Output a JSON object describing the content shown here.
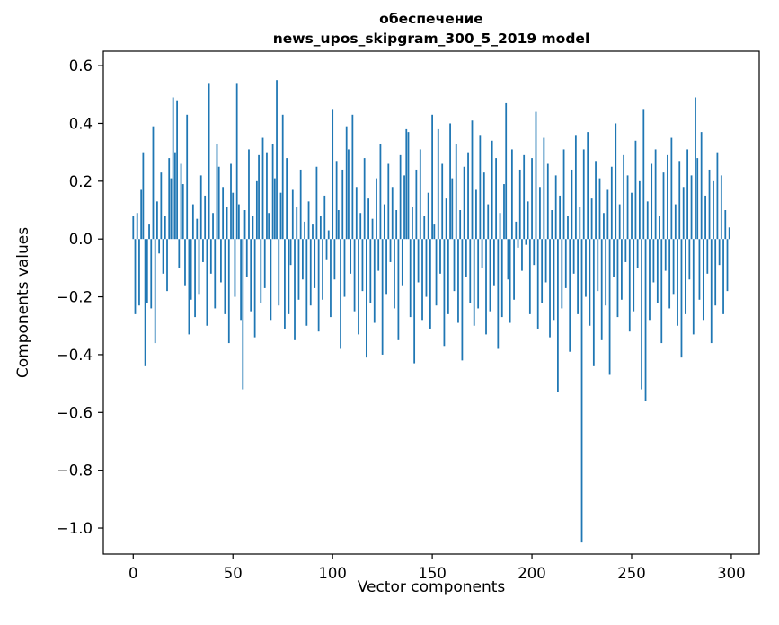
{
  "figure": {
    "title_line1": "обеспечение",
    "title_line2": "news_upos_skipgram_300_5_2019 model",
    "xlabel": "Vector components",
    "ylabel": "Components values"
  },
  "chart_data": {
    "type": "bar",
    "title": "обеспечение — news_upos_skipgram_300_5_2019 model",
    "xlabel": "Vector components",
    "ylabel": "Components values",
    "bar_color": "#1f77b4",
    "grid": false,
    "legend": "none",
    "xlim": [
      -15,
      314
    ],
    "ylim": [
      -1.09,
      0.65
    ],
    "xticks": [
      0,
      50,
      100,
      150,
      200,
      250,
      300
    ],
    "yticks": [
      0.6,
      0.4,
      0.2,
      0.0,
      -0.2,
      -0.4,
      -0.6,
      -0.8,
      -1.0
    ],
    "values": [
      0.08,
      -0.26,
      0.09,
      -0.23,
      0.17,
      0.3,
      -0.44,
      -0.22,
      0.05,
      -0.24,
      0.39,
      -0.36,
      0.13,
      -0.05,
      0.23,
      -0.12,
      0.08,
      -0.18,
      0.28,
      0.21,
      0.49,
      0.3,
      0.48,
      -0.1,
      0.26,
      0.19,
      -0.16,
      0.43,
      -0.33,
      -0.21,
      0.12,
      -0.27,
      0.07,
      -0.19,
      0.22,
      -0.08,
      0.15,
      -0.3,
      0.54,
      -0.12,
      0.09,
      -0.24,
      0.33,
      0.25,
      -0.15,
      0.18,
      -0.26,
      0.11,
      -0.36,
      0.26,
      0.16,
      -0.2,
      0.54,
      0.12,
      -0.28,
      -0.52,
      0.1,
      -0.13,
      0.31,
      -0.25,
      0.08,
      -0.34,
      0.2,
      0.29,
      -0.22,
      0.35,
      -0.17,
      0.3,
      0.09,
      -0.28,
      0.33,
      0.21,
      0.55,
      -0.23,
      0.16,
      0.43,
      -0.31,
      0.28,
      -0.26,
      -0.09,
      0.17,
      -0.35,
      0.11,
      -0.21,
      0.24,
      -0.14,
      0.06,
      -0.3,
      0.13,
      -0.23,
      0.05,
      -0.17,
      0.25,
      -0.32,
      0.08,
      -0.21,
      0.15,
      -0.07,
      0.03,
      -0.27,
      0.45,
      -0.14,
      0.27,
      0.1,
      -0.38,
      0.24,
      -0.2,
      0.39,
      0.31,
      -0.12,
      0.43,
      -0.25,
      0.18,
      -0.33,
      0.09,
      -0.18,
      0.28,
      -0.41,
      0.14,
      -0.22,
      0.07,
      -0.29,
      0.21,
      -0.11,
      0.33,
      -0.4,
      0.12,
      -0.19,
      0.26,
      -0.08,
      0.18,
      -0.24,
      0.1,
      -0.35,
      0.29,
      -0.16,
      0.22,
      0.38,
      0.37,
      -0.27,
      0.11,
      -0.43,
      0.24,
      -0.15,
      0.31,
      -0.28,
      0.08,
      -0.2,
      0.16,
      -0.31,
      0.43,
      0.05,
      -0.23,
      0.38,
      -0.12,
      0.26,
      -0.37,
      0.14,
      -0.26,
      0.4,
      0.21,
      -0.18,
      0.33,
      -0.29,
      0.1,
      -0.42,
      0.25,
      -0.13,
      0.3,
      -0.22,
      0.41,
      -0.3,
      0.17,
      -0.24,
      0.36,
      -0.1,
      0.23,
      -0.33,
      0.12,
      -0.25,
      0.34,
      -0.16,
      0.28,
      -0.38,
      0.09,
      -0.27,
      0.19,
      0.47,
      -0.14,
      -0.29,
      0.31,
      -0.21,
      0.06,
      -0.03,
      0.24,
      -0.11,
      0.29,
      -0.02,
      0.13,
      -0.26,
      0.28,
      -0.09,
      0.44,
      -0.31,
      0.18,
      -0.22,
      0.35,
      -0.15,
      0.26,
      -0.34,
      0.1,
      -0.28,
      0.22,
      -0.53,
      0.15,
      -0.24,
      0.31,
      -0.17,
      0.08,
      -0.39,
      0.24,
      -0.12,
      0.36,
      -0.26,
      0.11,
      -1.05,
      0.31,
      -0.2,
      0.37,
      -0.3,
      0.14,
      -0.44,
      0.27,
      -0.18,
      0.21,
      -0.35,
      0.09,
      -0.23,
      0.17,
      -0.47,
      0.25,
      -0.13,
      0.4,
      -0.27,
      0.12,
      -0.21,
      0.29,
      -0.08,
      0.22,
      -0.32,
      0.16,
      -0.25,
      0.34,
      -0.1,
      0.2,
      -0.52,
      0.45,
      -0.56,
      0.13,
      -0.28,
      0.26,
      -0.15,
      0.31,
      -0.22,
      0.08,
      -0.36,
      0.23,
      -0.11,
      0.29,
      -0.24,
      0.35,
      -0.19,
      0.12,
      -0.3,
      0.27,
      -0.41,
      0.18,
      -0.26,
      0.31,
      -0.14,
      0.22,
      -0.33,
      0.49,
      0.28,
      -0.21,
      0.37,
      -0.28,
      0.15,
      -0.12,
      0.24,
      -0.36,
      0.2,
      -0.23,
      0.3,
      -0.09,
      0.22,
      -0.26,
      0.1,
      -0.18,
      0.04
    ]
  }
}
